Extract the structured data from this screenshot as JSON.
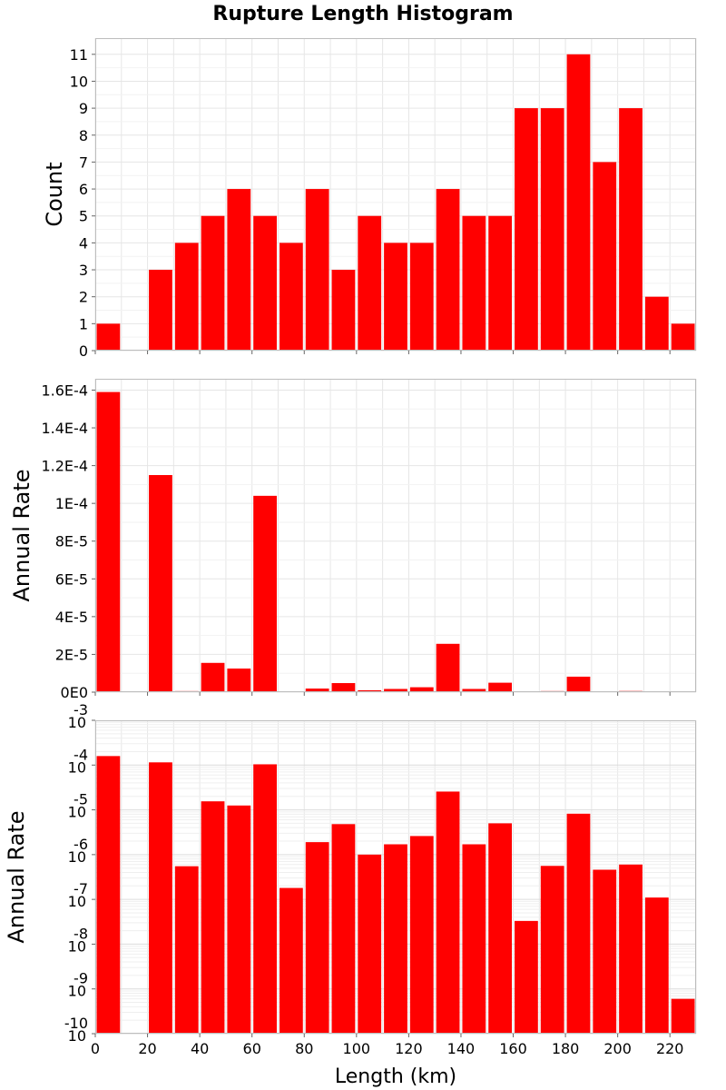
{
  "title": "Rupture Length Histogram",
  "chart_data": [
    {
      "type": "bar",
      "ylabel": "Count",
      "xlabel": "Length (km)",
      "x": [
        5,
        15,
        25,
        35,
        45,
        55,
        65,
        75,
        85,
        95,
        105,
        115,
        125,
        135,
        145,
        155,
        165,
        175,
        185,
        195,
        205,
        215,
        225
      ],
      "values": [
        1,
        0,
        3,
        4,
        5,
        6,
        5,
        4,
        6,
        3,
        5,
        4,
        4,
        6,
        5,
        5,
        9,
        9,
        11,
        7,
        9,
        2,
        1
      ],
      "xlim": [
        0,
        230
      ],
      "ylim": [
        0,
        11.6
      ],
      "yticks": [
        0,
        1,
        2,
        3,
        4,
        5,
        6,
        7,
        8,
        9,
        10,
        11
      ],
      "ytick_labels": [
        "0",
        "1",
        "2",
        "3",
        "4",
        "5",
        "6",
        "7",
        "8",
        "9",
        "10",
        "11"
      ],
      "color": "#ff0000",
      "grid": true
    },
    {
      "type": "bar",
      "ylabel": "Annual Rate",
      "xlabel": "Length (km)",
      "x": [
        5,
        15,
        25,
        35,
        45,
        55,
        65,
        75,
        85,
        95,
        105,
        115,
        125,
        135,
        145,
        155,
        165,
        175,
        185,
        195,
        205,
        215,
        225
      ],
      "values": [
        0.000159,
        0,
        0.000115,
        5.5e-07,
        1.55e-05,
        1.25e-05,
        0.000104,
        1.8e-07,
        1.9e-06,
        4.8e-06,
        1e-06,
        1.7e-06,
        2.6e-06,
        2.56e-05,
        1.7e-06,
        5e-06,
        3.3e-08,
        5.6e-07,
        8.2e-06,
        4.6e-07,
        6e-07,
        1.1e-07,
        6e-10
      ],
      "xlim": [
        0,
        230
      ],
      "ylim": [
        0,
        0.000166
      ],
      "yticks": [
        0,
        2e-05,
        4e-05,
        6e-05,
        8e-05,
        0.0001,
        0.00012,
        0.00014,
        0.00016
      ],
      "ytick_labels": [
        "0E0",
        "2E-5",
        "4E-5",
        "6E-5",
        "8E-5",
        "1E-4",
        "1.2E-4",
        "1.4E-4",
        "1.6E-4"
      ],
      "color": "#ff0000",
      "grid": true
    },
    {
      "type": "bar",
      "scale": "log",
      "ylabel": "Annual Rate",
      "xlabel": "Length (km)",
      "x": [
        5,
        15,
        25,
        35,
        45,
        55,
        65,
        75,
        85,
        95,
        105,
        115,
        125,
        135,
        145,
        155,
        165,
        175,
        185,
        195,
        205,
        215,
        225
      ],
      "values": [
        0.000159,
        0,
        0.000115,
        5.5e-07,
        1.55e-05,
        1.25e-05,
        0.000104,
        1.8e-07,
        1.9e-06,
        4.8e-06,
        1e-06,
        1.7e-06,
        2.6e-06,
        2.56e-05,
        1.7e-06,
        5e-06,
        3.3e-08,
        5.6e-07,
        8.2e-06,
        4.6e-07,
        6e-07,
        1.1e-07,
        6e-10
      ],
      "xlim": [
        0,
        230
      ],
      "ylim": [
        1e-10,
        0.001
      ],
      "yticks": [
        -10,
        -9,
        -8,
        -7,
        -6,
        -5,
        -4,
        -3
      ],
      "ytick_base": "10",
      "ytick_exponents": [
        "-10",
        "-9",
        "-8",
        "-7",
        "-6",
        "-5",
        "-4",
        "-3"
      ],
      "xticks": [
        0,
        20,
        40,
        60,
        80,
        100,
        120,
        140,
        160,
        180,
        200,
        220
      ],
      "xtick_labels": [
        "0",
        "20",
        "40",
        "60",
        "80",
        "100",
        "120",
        "140",
        "160",
        "180",
        "200",
        "220"
      ],
      "color": "#ff0000",
      "grid": true
    }
  ]
}
